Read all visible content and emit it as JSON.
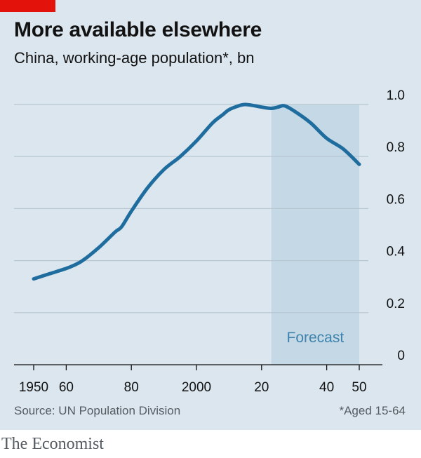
{
  "header": {
    "title": "More available elsewhere",
    "subtitle": "China, working-age population*, bn"
  },
  "footer": {
    "source": "Source: UN Population Division",
    "footnote": "*Aged 15-64",
    "brand": "The Economist"
  },
  "colors": {
    "background": "#dbe6ee",
    "line": "#1f6d9e",
    "forecast_band": "#c4d8e5",
    "gridline": "#b7c6d1",
    "accent_red": "#e3120b"
  },
  "chart_data": {
    "type": "line",
    "title": "More available elsewhere",
    "subtitle": "China, working-age population*, bn",
    "xlabel": "",
    "ylabel": "bn",
    "xlim": [
      1945,
      2054
    ],
    "ylim": [
      0,
      1.0
    ],
    "y_ticks": [
      0,
      0.2,
      0.4,
      0.6,
      0.8,
      1.0
    ],
    "y_tick_labels": [
      "0",
      "0.2",
      "0.4",
      "0.6",
      "0.8",
      "1.0"
    ],
    "x_ticks": [
      1950,
      1960,
      1980,
      2000,
      2020,
      2040,
      2050
    ],
    "x_tick_labels": [
      "1950",
      "60",
      "80",
      "2000",
      "20",
      "40",
      "50"
    ],
    "grid": true,
    "forecast": {
      "label": "Forecast",
      "start": 2023,
      "end": 2050
    },
    "series": [
      {
        "name": "Working-age population",
        "x": [
          1950,
          1955,
          1960,
          1962,
          1965,
          1970,
          1975,
          1977,
          1980,
          1985,
          1990,
          1995,
          2000,
          2005,
          2008,
          2010,
          2013,
          2015,
          2018,
          2020,
          2023,
          2025,
          2027,
          2030,
          2035,
          2040,
          2045,
          2050
        ],
        "values": [
          0.33,
          0.35,
          0.37,
          0.38,
          0.4,
          0.45,
          0.51,
          0.53,
          0.59,
          0.68,
          0.75,
          0.8,
          0.86,
          0.93,
          0.96,
          0.98,
          0.995,
          1.0,
          0.995,
          0.99,
          0.985,
          0.99,
          0.995,
          0.975,
          0.93,
          0.87,
          0.83,
          0.77
        ]
      }
    ]
  }
}
